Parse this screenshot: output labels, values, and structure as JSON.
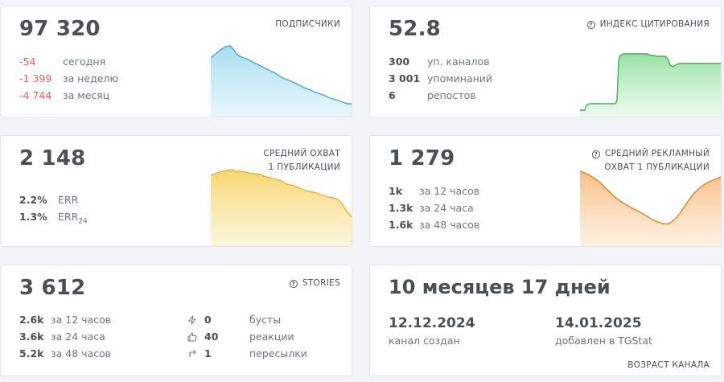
{
  "subscribers": {
    "value": "97 320",
    "label": "ПОДПИСЧИКИ",
    "rows": [
      {
        "value": "-54",
        "text": "сегодня"
      },
      {
        "value": "-1 399",
        "text": "за неделю"
      },
      {
        "value": "-4 744",
        "text": "за месяц"
      }
    ],
    "color": "#4fb3d9"
  },
  "citation": {
    "value": "52.8",
    "label": "ИНДЕКС ЦИТИРОВАНИЯ",
    "icon": "question-circle-icon",
    "rows": [
      {
        "value": "300",
        "text": "уп. каналов"
      },
      {
        "value": "3 001",
        "text": "упоминаний"
      },
      {
        "value": "6",
        "text": "репостов"
      }
    ],
    "color": "#4cc460"
  },
  "reach": {
    "value": "2 148",
    "label_line1": "СРЕДНИЙ ОХВАТ",
    "label_line2": "1 ПУБЛИКАЦИИ",
    "rows": [
      {
        "value": "2.2%",
        "text": "ERR"
      },
      {
        "value": "1.3%",
        "text": "ERR",
        "sub": "24"
      }
    ],
    "color": "#f2c12e"
  },
  "ad_reach": {
    "value": "1 279",
    "label_line1": "СРЕДНИЙ РЕКЛАМНЫЙ",
    "label_line2": "ОХВАТ 1 ПУБЛИКАЦИИ",
    "icon": "question-circle-icon",
    "rows": [
      {
        "value": "1k",
        "text": "за 12 часов"
      },
      {
        "value": "1.3k",
        "text": "за 24 часа"
      },
      {
        "value": "1.6k",
        "text": "за 48 часов"
      }
    ],
    "color": "#f5a04a"
  },
  "stories": {
    "value": "3 612",
    "label": "STORIES",
    "icon": "question-circle-icon",
    "rows": [
      {
        "value": "2.6k",
        "text": "за 12 часов"
      },
      {
        "value": "3.6k",
        "text": "за 24 часа"
      },
      {
        "value": "5.2k",
        "text": "за 48 часов"
      }
    ],
    "stats": [
      {
        "icon": "lightning-icon",
        "value": "0",
        "text": "бусты"
      },
      {
        "icon": "thumbs-up-icon",
        "value": "40",
        "text": "реакции"
      },
      {
        "icon": "share-arrow-icon",
        "value": "1",
        "text": "пересылки"
      }
    ]
  },
  "age": {
    "value": "10 месяцев 17 дней",
    "created_date": "12.12.2024",
    "created_label": "канал создан",
    "added_date": "14.01.2025",
    "added_label": "добавлен в TGStat",
    "label": "ВОЗРАСТ КАНАЛА"
  }
}
